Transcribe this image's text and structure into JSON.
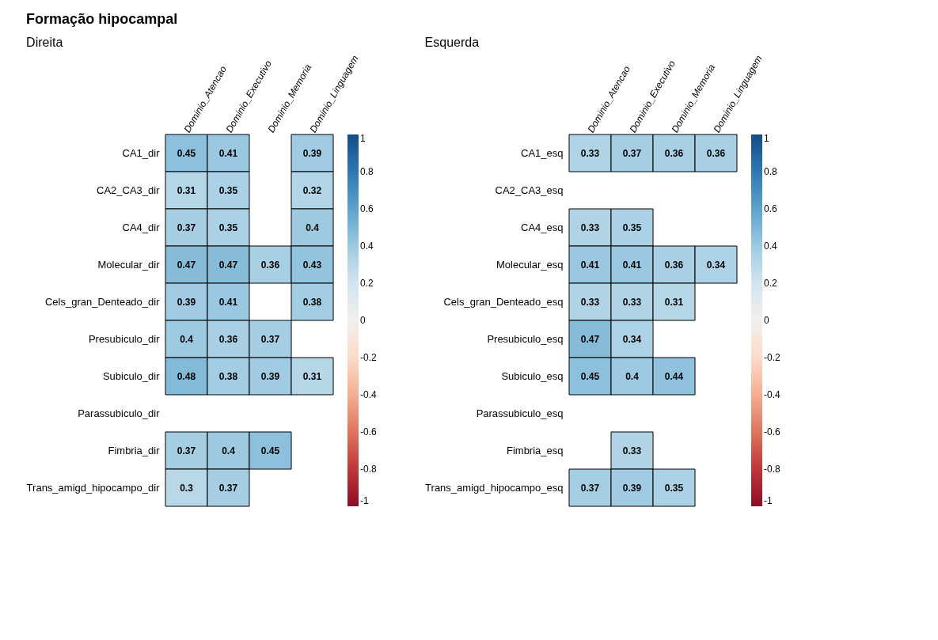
{
  "chart_data": [
    {
      "type": "heatmap",
      "title": "Formação hipocampal",
      "subtitle": "Direita",
      "categories": [
        "Dominio_Atencao",
        "Dominio_Executivo",
        "Dominio_Memoria",
        "Dominio_Linguagem"
      ],
      "y_categories": [
        "CA1_dir",
        "CA2_CA3_dir",
        "CA4_dir",
        "Molecular_dir",
        "Cels_gran_Denteado_dir",
        "Presubiculo_dir",
        "Subiculo_dir",
        "Parassubiculo_dir",
        "Fimbria_dir",
        "Trans_amigd_hipocampo_dir"
      ],
      "cells": [
        [
          0.45,
          0.41,
          null,
          0.39
        ],
        [
          0.31,
          0.35,
          null,
          0.32
        ],
        [
          0.37,
          0.35,
          null,
          0.4
        ],
        [
          0.47,
          0.47,
          0.36,
          0.43
        ],
        [
          0.39,
          0.41,
          null,
          0.38
        ],
        [
          0.4,
          0.36,
          0.37,
          null
        ],
        [
          0.48,
          0.38,
          0.39,
          0.31
        ],
        [
          null,
          null,
          null,
          null
        ],
        [
          0.37,
          0.4,
          0.45,
          null
        ],
        [
          0.3,
          0.37,
          null,
          null
        ]
      ],
      "data_labels": true,
      "clim": [
        -1,
        1
      ],
      "cticks": [
        1,
        0.8,
        0.6,
        0.4,
        0.2,
        0,
        -0.2,
        -0.4,
        -0.6,
        -0.8,
        -1
      ]
    },
    {
      "type": "heatmap",
      "subtitle": "Esquerda",
      "categories": [
        "Dominio_Atencao",
        "Dominio_Executivo",
        "Dominio_Memoria",
        "Dominio_Linguagem"
      ],
      "y_categories": [
        "CA1_esq",
        "CA2_CA3_esq",
        "CA4_esq",
        "Molecular_esq",
        "Cels_gran_Denteado_esq",
        "Presubiculo_esq",
        "Subiculo_esq",
        "Parassubiculo_esq",
        "Fimbria_esq",
        "Trans_amigd_hipocampo_esq"
      ],
      "cells": [
        [
          0.33,
          0.37,
          0.36,
          0.36
        ],
        [
          null,
          null,
          null,
          null
        ],
        [
          0.33,
          0.35,
          null,
          null
        ],
        [
          0.41,
          0.41,
          0.36,
          0.34
        ],
        [
          0.33,
          0.33,
          0.31,
          null
        ],
        [
          0.47,
          0.34,
          null,
          null
        ],
        [
          0.45,
          0.4,
          0.44,
          null
        ],
        [
          null,
          null,
          null,
          null
        ],
        [
          null,
          0.33,
          null,
          null
        ],
        [
          0.37,
          0.39,
          0.35,
          null
        ]
      ],
      "data_labels": true,
      "clim": [
        -1,
        1
      ],
      "cticks": [
        1,
        0.8,
        0.6,
        0.4,
        0.2,
        0,
        -0.2,
        -0.4,
        -0.6,
        -0.8,
        -1
      ]
    }
  ]
}
